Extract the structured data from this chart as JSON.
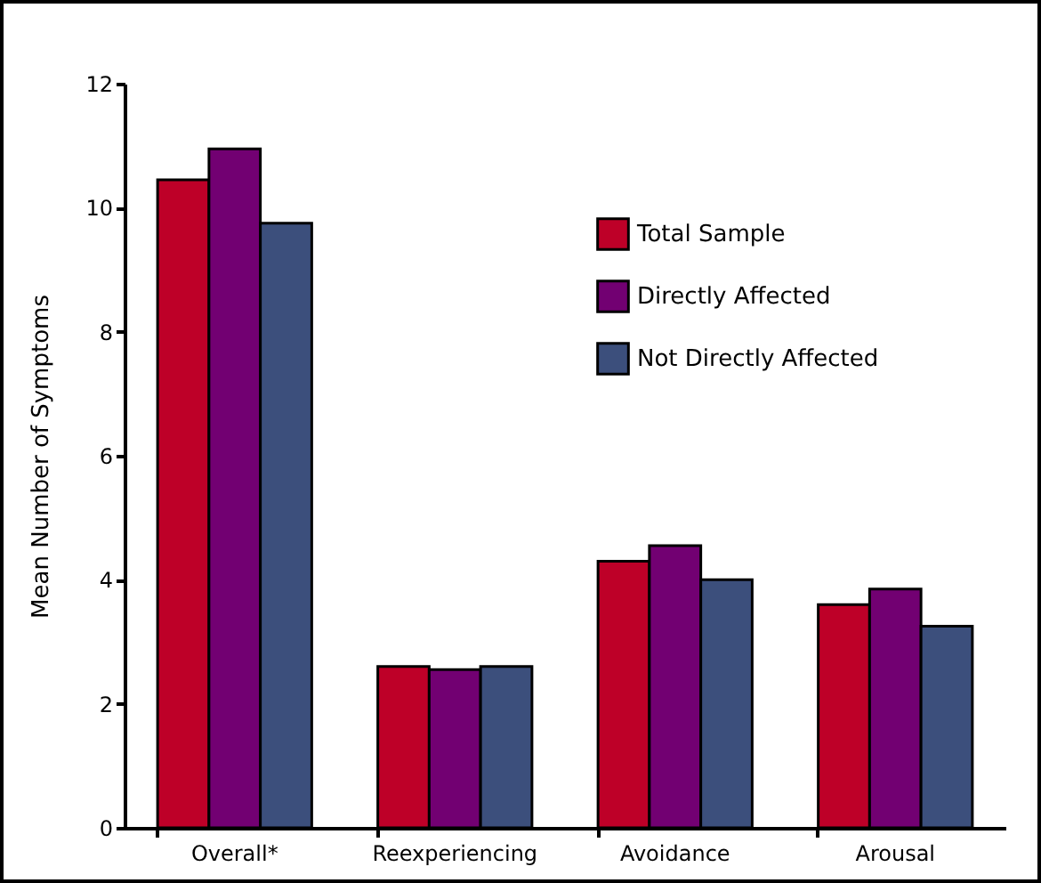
{
  "chart_data": {
    "type": "bar",
    "ylabel": "Mean Number of Symptoms",
    "categories": [
      "Overall*",
      "Reexperiencing",
      "Avoidance",
      "Arousal"
    ],
    "series": [
      {
        "name": "Total Sample",
        "color": "#be0028",
        "values": [
          10.45,
          2.6,
          4.3,
          3.6
        ]
      },
      {
        "name": "Directly Affected",
        "color": "#720072",
        "values": [
          10.95,
          2.55,
          4.55,
          3.85
        ]
      },
      {
        "name": "Not Directly Affected",
        "color": "#3c4f7c",
        "values": [
          9.75,
          2.6,
          4.0,
          3.25
        ]
      }
    ],
    "ylim": [
      0,
      12
    ],
    "yticks": [
      0,
      2,
      4,
      6,
      8,
      10,
      12
    ],
    "grid": false,
    "legend": "top right"
  }
}
